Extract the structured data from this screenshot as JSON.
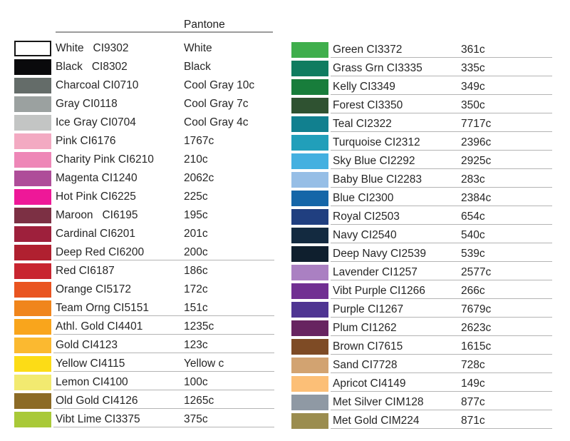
{
  "header": {
    "pantone_label": "Pantone"
  },
  "left_column": {
    "rows": [
      {
        "label": "White   CI9302",
        "pantone": "White",
        "color": "#ffffff",
        "bordered": true,
        "lined": false
      },
      {
        "label": "Black   CI8302",
        "pantone": "Black",
        "color": "#0a0a0c",
        "bordered": false,
        "lined": false
      },
      {
        "label": "Charcoal CI0710",
        "pantone": "Cool Gray 10c",
        "color": "#646c69",
        "bordered": false,
        "lined": false
      },
      {
        "label": "Gray CI0118",
        "pantone": "Cool Gray 7c",
        "color": "#9ba1a0",
        "bordered": false,
        "lined": false
      },
      {
        "label": "Ice Gray CI0704",
        "pantone": "Cool Gray 4c",
        "color": "#c3c5c4",
        "bordered": false,
        "lined": false
      },
      {
        "label": "Pink CI6176",
        "pantone": "1767c",
        "color": "#f3aac2",
        "bordered": false,
        "lined": false
      },
      {
        "label": "Charity Pink CI6210",
        "pantone": "210c",
        "color": "#ee87b7",
        "bordered": false,
        "lined": false
      },
      {
        "label": "Magenta CI1240",
        "pantone": "2062c",
        "color": "#ae4d99",
        "bordered": false,
        "lined": false
      },
      {
        "label": "Hot Pink CI6225",
        "pantone": "225c",
        "color": "#ee1898",
        "bordered": false,
        "lined": false
      },
      {
        "label": "Maroon   CI6195",
        "pantone": "195c",
        "color": "#7c3044",
        "bordered": false,
        "lined": false
      },
      {
        "label": "Cardinal CI6201",
        "pantone": "201c",
        "color": "#9e203c",
        "bordered": false,
        "lined": false
      },
      {
        "label": "Deep Red CI6200",
        "pantone": "200c",
        "color": "#b02030",
        "bordered": false,
        "lined": true
      },
      {
        "label": "Red CI6187",
        "pantone": "186c",
        "color": "#c82530",
        "bordered": false,
        "lined": false
      },
      {
        "label": "Orange CI5172",
        "pantone": "172c",
        "color": "#e95420",
        "bordered": false,
        "lined": false
      },
      {
        "label": "Team Orng CI5151",
        "pantone": "151c",
        "color": "#f0851c",
        "bordered": false,
        "lined": true
      },
      {
        "label": "Athl. Gold CI4401",
        "pantone": "1235c",
        "color": "#f9a51c",
        "bordered": false,
        "lined": true
      },
      {
        "label": "Gold CI4123",
        "pantone": "123c",
        "color": "#fbb930",
        "bordered": false,
        "lined": true
      },
      {
        "label": "Yellow CI4115",
        "pantone": "Yellow c",
        "color": "#fcdc16",
        "bordered": false,
        "lined": true
      },
      {
        "label": "Lemon CI4100",
        "pantone": "100c",
        "color": "#f2ea70",
        "bordered": false,
        "lined": true
      },
      {
        "label": "Old Gold CI4126",
        "pantone": "1265c",
        "color": "#8c6b26",
        "bordered": false,
        "lined": true
      },
      {
        "label": "Vibt Lime CI3375",
        "pantone": "375c",
        "color": "#a9c938",
        "bordered": false,
        "lined": true
      }
    ]
  },
  "right_column": {
    "rows": [
      {
        "label": "Green CI3372",
        "pantone": "361c",
        "color": "#3fae4c",
        "bordered": false,
        "lined": true
      },
      {
        "label": "Grass Grn CI3335",
        "pantone": "335c",
        "color": "#107c60",
        "bordered": false,
        "lined": true
      },
      {
        "label": "Kelly CI3349",
        "pantone": "349c",
        "color": "#187d3b",
        "bordered": false,
        "lined": true
      },
      {
        "label": "Forest CI3350",
        "pantone": "350c",
        "color": "#2f5231",
        "bordered": false,
        "lined": true
      },
      {
        "label": "Teal CI2322",
        "pantone": "7717c",
        "color": "#11808f",
        "bordered": false,
        "lined": true
      },
      {
        "label": "Turquoise CI2312",
        "pantone": "2396c",
        "color": "#219fba",
        "bordered": false,
        "lined": true
      },
      {
        "label": "Sky Blue CI2292",
        "pantone": "2925c",
        "color": "#44b0e0",
        "bordered": false,
        "lined": true
      },
      {
        "label": "Baby Blue CI2283",
        "pantone": "283c",
        "color": "#96bee6",
        "bordered": false,
        "lined": true
      },
      {
        "label": "Blue CI2300",
        "pantone": "2384c",
        "color": "#1566a8",
        "bordered": false,
        "lined": true
      },
      {
        "label": "Royal CI2503",
        "pantone": "654c",
        "color": "#203f80",
        "bordered": false,
        "lined": true
      },
      {
        "label": "Navy CI2540",
        "pantone": "540c",
        "color": "#132a40",
        "bordered": false,
        "lined": true
      },
      {
        "label": "Deep Navy CI2539",
        "pantone": "539c",
        "color": "#0f1f2e",
        "bordered": false,
        "lined": true
      },
      {
        "label": "Lavender CI1257",
        "pantone": "2577c",
        "color": "#aa80c2",
        "bordered": false,
        "lined": true
      },
      {
        "label": "Vibt Purple CI1266",
        "pantone": "266c",
        "color": "#712f92",
        "bordered": false,
        "lined": true
      },
      {
        "label": "Purple CI1267",
        "pantone": "7679c",
        "color": "#4f3592",
        "bordered": false,
        "lined": true
      },
      {
        "label": "Plum CI1262",
        "pantone": "2623c",
        "color": "#672460",
        "bordered": false,
        "lined": true
      },
      {
        "label": "Brown CI7615",
        "pantone": "1615c",
        "color": "#7e4b25",
        "bordered": false,
        "lined": true
      },
      {
        "label": "Sand CI7728",
        "pantone": "728c",
        "color": "#d2a371",
        "bordered": false,
        "lined": true
      },
      {
        "label": "Apricot CI4149",
        "pantone": "149c",
        "color": "#fcbf77",
        "bordered": false,
        "lined": true
      },
      {
        "label": "Met Silver CIM128",
        "pantone": "877c",
        "color": "#8f99a4",
        "bordered": false,
        "lined": true
      },
      {
        "label": "Met Gold CIM224",
        "pantone": "871c",
        "color": "#9b8d4f",
        "bordered": false,
        "lined": true
      }
    ]
  }
}
